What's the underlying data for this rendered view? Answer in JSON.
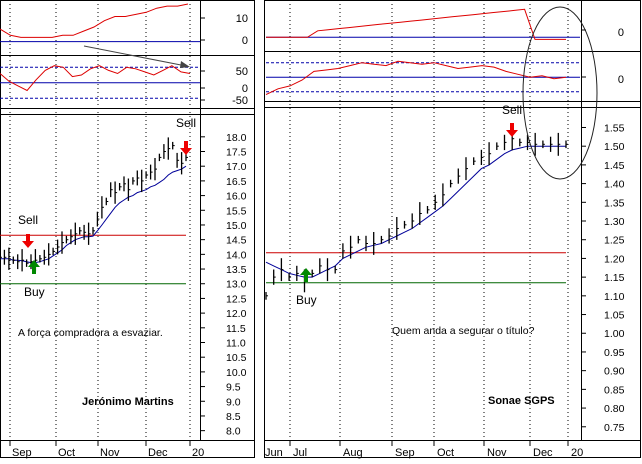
{
  "colors": {
    "osc": "#dd0000",
    "signal": "#0000aa",
    "ma": "#000099",
    "price": "#000000",
    "resistance": "#cc0000",
    "support": "#006600",
    "sell_arrow": "#ee0000",
    "buy_arrow": "#008800",
    "grid": "#000000",
    "background": "#ffffff"
  },
  "chart_data": [
    {
      "type": "line",
      "panel": "left-top",
      "y_tick_labels": [
        "10",
        "0"
      ],
      "ylim": [
        -5,
        18
      ],
      "lines": [
        0
      ],
      "series": [
        {
          "values": [
            6,
            3,
            2,
            2,
            2,
            2,
            3,
            3,
            5,
            7,
            10,
            12,
            12,
            13,
            14,
            16,
            17,
            17,
            18
          ]
        }
      ]
    },
    {
      "type": "line",
      "panel": "left-middle",
      "y_tick_labels": [
        "50",
        "0",
        "-50"
      ],
      "ylim": [
        -75,
        80
      ],
      "lines": [
        -50,
        0,
        50
      ],
      "series": [
        {
          "values": [
            30,
            5,
            -10,
            -25,
            10,
            40,
            55,
            50,
            20,
            25,
            45,
            55,
            40,
            30,
            50,
            45,
            35,
            25,
            40,
            55,
            35,
            30
          ]
        }
      ]
    },
    {
      "type": "line",
      "panel": "left-price",
      "title": "Jerónimo Martins",
      "x_tick_labels": [
        "Sep",
        "Oct",
        "Nov",
        "Dec",
        "20"
      ],
      "y_tick_labels": [
        "18.0",
        "17.5",
        "17.0",
        "16.5",
        "16.0",
        "15.5",
        "15.0",
        "14.5",
        "14.0",
        "13.5",
        "13.0",
        "12.5",
        "12.0",
        "11.5",
        "11.0",
        "10.5",
        "10.0",
        "9.5",
        "9.0",
        "8.5",
        "8.0"
      ],
      "ylim": [
        7.5,
        18.5
      ],
      "resistance": 14.65,
      "support": 13.0,
      "series": [
        {
          "name": "Price",
          "values": [
            13.9,
            13.9,
            13.85,
            13.8,
            13.75,
            13.8,
            13.7,
            13.75,
            13.8,
            13.85,
            13.9,
            14.0,
            14.1,
            14.25,
            14.4,
            14.5,
            14.6,
            14.7,
            14.8,
            14.75,
            14.7,
            14.8,
            15.2,
            15.6,
            15.8,
            16.2,
            16.1,
            16.3,
            16.4,
            16.2,
            16.5,
            16.6,
            16.5,
            16.7,
            16.8,
            16.9,
            17.3,
            17.5,
            17.6,
            17.7,
            17.2,
            17.1,
            17.3
          ]
        },
        {
          "name": "Moving average",
          "values": [
            13.85,
            13.85,
            13.85,
            13.8,
            13.8,
            13.78,
            13.75,
            13.72,
            13.72,
            13.75,
            13.8,
            13.85,
            13.95,
            14.05,
            14.15,
            14.3,
            14.4,
            14.5,
            14.55,
            14.6,
            14.6,
            14.62,
            14.8,
            15.0,
            15.2,
            15.4,
            15.6,
            15.75,
            15.85,
            15.95,
            16.0,
            16.1,
            16.15,
            16.2,
            16.3,
            16.35,
            16.45,
            16.55,
            16.7,
            16.8,
            16.85,
            16.9,
            17.0
          ]
        }
      ],
      "annotations": [
        "Sell",
        "Buy",
        "Sell",
        "A força compradora a esvaziar."
      ]
    },
    {
      "type": "line",
      "panel": "right-top",
      "y_tick_labels": [
        "0"
      ],
      "ylim": [
        -10,
        30
      ],
      "lines": [
        0
      ],
      "series": [
        {
          "values": [
            0,
            0,
            0,
            0,
            0,
            6,
            7,
            8,
            9,
            10,
            11,
            12,
            13,
            14,
            15,
            16,
            17,
            18,
            19,
            20,
            21,
            22,
            23,
            24,
            25,
            26,
            -2,
            -2,
            -2,
            -2
          ]
        }
      ]
    },
    {
      "type": "line",
      "panel": "right-middle",
      "y_tick_labels": [
        "0"
      ],
      "ylim": [
        -75,
        80
      ],
      "lines": [
        -50,
        0,
        50
      ],
      "series": [
        {
          "values": [
            -60,
            -40,
            -30,
            -10,
            20,
            25,
            30,
            40,
            50,
            45,
            40,
            55,
            50,
            45,
            50,
            40,
            30,
            35,
            40,
            35,
            20,
            10,
            0,
            5,
            -5,
            0
          ]
        }
      ]
    },
    {
      "type": "line",
      "panel": "right-price",
      "title": "Sonae SGPS",
      "x_tick_labels": [
        "Jun",
        "Jul",
        "Aug",
        "Sep",
        "Oct",
        "Nov",
        "Dec",
        "20"
      ],
      "y_tick_labels": [
        "1.55",
        "1.50",
        "1.45",
        "1.40",
        "1.35",
        "1.30",
        "1.25",
        "1.20",
        "1.15",
        "1.10",
        "1.05",
        "1.00",
        "0.95",
        "0.90",
        "0.85",
        "0.80",
        "0.75"
      ],
      "ylim": [
        0.72,
        1.58
      ],
      "resistance": 1.215,
      "support": 1.135,
      "series": [
        {
          "name": "Price",
          "values": [
            1.1,
            1.15,
            1.17,
            1.15,
            1.16,
            1.14,
            1.16,
            1.18,
            1.17,
            1.17,
            1.22,
            1.23,
            1.25,
            1.24,
            1.24,
            1.25,
            1.26,
            1.28,
            1.29,
            1.3,
            1.32,
            1.33,
            1.35,
            1.37,
            1.4,
            1.42,
            1.44,
            1.46,
            1.47,
            1.48,
            1.5,
            1.51,
            1.52,
            1.51,
            1.51,
            1.505,
            1.505,
            1.505,
            1.505,
            1.505
          ]
        },
        {
          "name": "Moving average",
          "values": [
            1.19,
            1.18,
            1.17,
            1.16,
            1.155,
            1.15,
            1.15,
            1.16,
            1.17,
            1.18,
            1.2,
            1.21,
            1.22,
            1.23,
            1.235,
            1.24,
            1.25,
            1.26,
            1.27,
            1.28,
            1.295,
            1.31,
            1.325,
            1.34,
            1.36,
            1.38,
            1.4,
            1.42,
            1.44,
            1.45,
            1.465,
            1.48,
            1.49,
            1.495,
            1.5,
            1.5,
            1.5,
            1.5,
            1.5,
            1.5
          ]
        }
      ],
      "annotations": [
        "Sell",
        "Buy",
        "Quem anda a segurar o título?"
      ]
    }
  ]
}
